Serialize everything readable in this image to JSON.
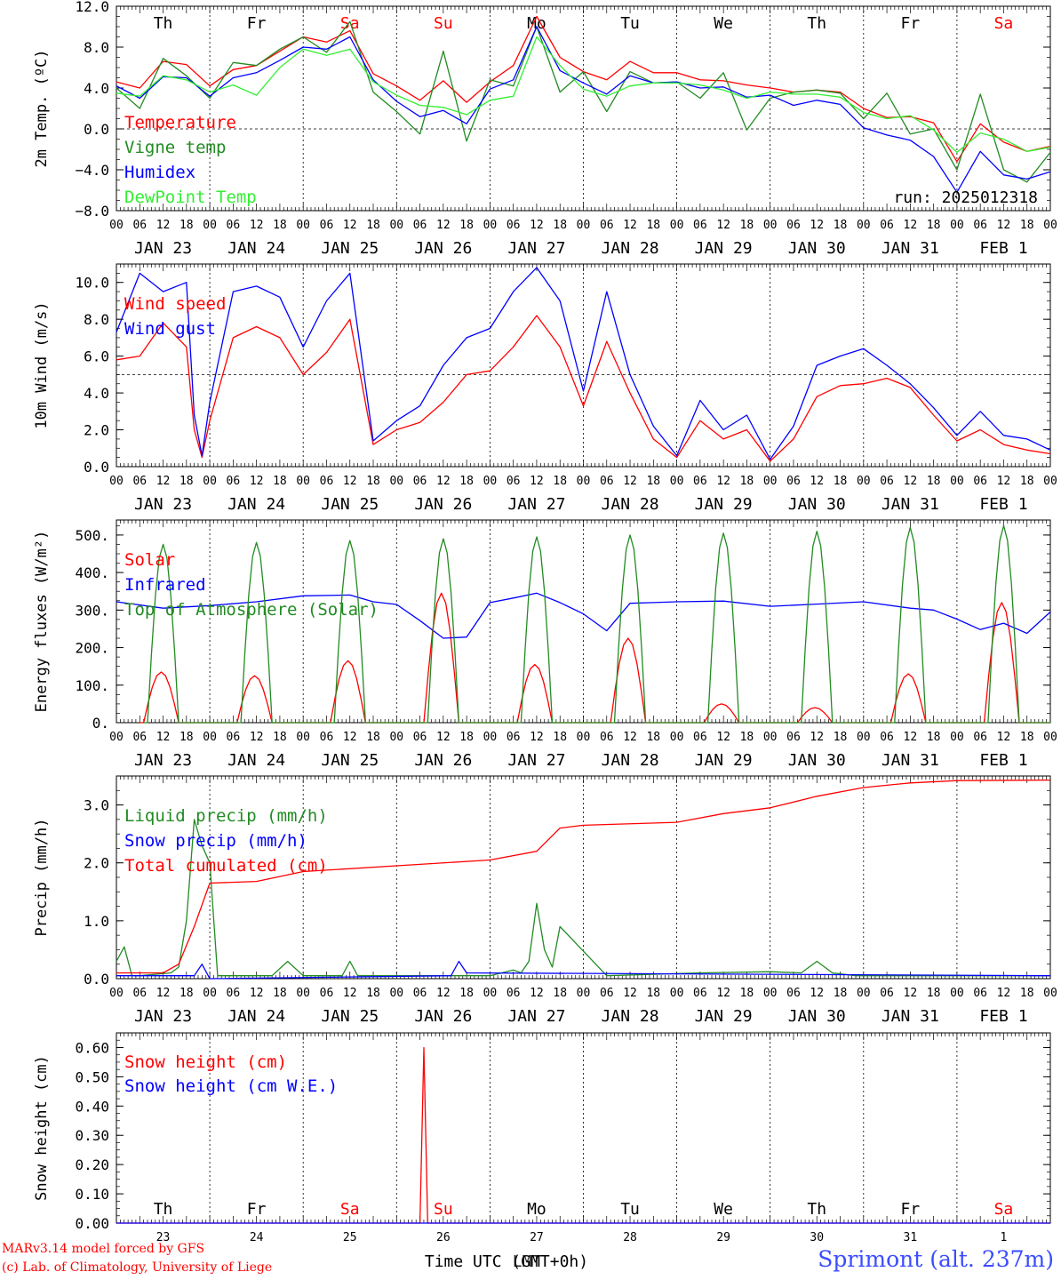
{
  "colors": {
    "red": "#ff0000",
    "green": "#228b22",
    "blue": "#0000ff",
    "lightgreen": "#33ee33",
    "black": "#000000"
  },
  "xaxis": {
    "tick_hours": [
      "00",
      "06",
      "12",
      "18"
    ],
    "date_labels": [
      "JAN 23",
      "JAN 24",
      "JAN 25",
      "JAN 26",
      "JAN 27",
      "JAN 28",
      "JAN 29",
      "JAN 30",
      "JAN 31",
      "FEB  1"
    ],
    "weekdays": [
      {
        "label": "Th",
        "weekend": false
      },
      {
        "label": "Fr",
        "weekend": false
      },
      {
        "label": "Sa",
        "weekend": true
      },
      {
        "label": "Su",
        "weekend": true
      },
      {
        "label": "Mo",
        "weekend": false
      },
      {
        "label": "Tu",
        "weekend": false
      },
      {
        "label": "We",
        "weekend": false
      },
      {
        "label": "Th",
        "weekend": false
      },
      {
        "label": "Fr",
        "weekend": false
      },
      {
        "label": "Sa",
        "weekend": true
      }
    ],
    "day_numbers": [
      "23",
      "24",
      "25",
      "26",
      "27",
      "28",
      "29",
      "30",
      "31",
      "1"
    ],
    "title": "Time UTC (GMT+0h)",
    "title_overprint": "LMT"
  },
  "footer": {
    "credit_line1": "MARv3.14 model forced by GFS",
    "credit_line2": "(c) Lab. of Climatology, University of Liege",
    "station": "Sprimont (alt. 237m)"
  },
  "chart_data": [
    {
      "type": "line",
      "ylabel": "2m Temp. (ºC)",
      "ylim": [
        -8,
        12
      ],
      "yticks": [
        "12.0",
        "8.0",
        "4.0",
        "0.0",
        "−4.0",
        "−8.0"
      ],
      "ytick_values": [
        12,
        8,
        4,
        0,
        -4,
        -8
      ],
      "reference_line": 0,
      "xlim_hours": [
        0,
        240
      ],
      "annotation": "run: 2025012318",
      "legend_placement": "top-left",
      "series": [
        {
          "name": "Temperature",
          "color": "red",
          "x": [
            0,
            6,
            12,
            18,
            24,
            30,
            36,
            42,
            48,
            54,
            60,
            66,
            72,
            78,
            84,
            90,
            96,
            102,
            108,
            114,
            120,
            126,
            132,
            138,
            144,
            150,
            156,
            162,
            168,
            174,
            180,
            186,
            192,
            198,
            204,
            210,
            216,
            222,
            228,
            234,
            240
          ],
          "y": [
            4.6,
            4.0,
            6.6,
            6.3,
            4.2,
            5.8,
            6.2,
            7.6,
            9.0,
            8.5,
            9.6,
            5.4,
            4.2,
            2.8,
            4.7,
            2.6,
            4.6,
            6.2,
            11.0,
            7.0,
            5.6,
            4.8,
            6.6,
            5.5,
            5.5,
            4.8,
            4.7,
            4.3,
            4.0,
            3.6,
            3.8,
            3.6,
            2.0,
            1.1,
            1.2,
            0.6,
            -3.2,
            0.5,
            -1.3,
            -2.2,
            -1.7
          ]
        },
        {
          "name": "Vigne temp",
          "color": "green",
          "x": [
            0,
            6,
            12,
            18,
            24,
            30,
            36,
            42,
            48,
            54,
            60,
            66,
            72,
            78,
            84,
            90,
            96,
            102,
            108,
            114,
            120,
            126,
            132,
            138,
            144,
            150,
            156,
            162,
            168,
            174,
            180,
            186,
            192,
            198,
            204,
            210,
            216,
            222,
            228,
            234,
            240
          ],
          "y": [
            4.0,
            2.0,
            6.9,
            5.2,
            3.0,
            6.5,
            6.2,
            7.8,
            9.0,
            7.5,
            10.5,
            3.6,
            1.7,
            -0.5,
            7.6,
            -1.2,
            4.8,
            4.2,
            10.0,
            3.6,
            5.6,
            1.7,
            5.6,
            4.5,
            4.6,
            3.0,
            5.5,
            -0.1,
            3.0,
            3.6,
            3.8,
            3.5,
            1.0,
            3.5,
            -0.5,
            0.0,
            -4.0,
            3.4,
            -4.0,
            -5.2,
            -2.3
          ]
        },
        {
          "name": "Humidex",
          "color": "blue",
          "x": [
            0,
            6,
            12,
            18,
            24,
            30,
            36,
            42,
            48,
            54,
            60,
            66,
            72,
            78,
            84,
            90,
            96,
            102,
            108,
            114,
            120,
            126,
            132,
            138,
            144,
            150,
            156,
            162,
            168,
            174,
            180,
            186,
            192,
            198,
            204,
            210,
            216,
            222,
            228,
            234,
            240
          ],
          "y": [
            4.2,
            3.0,
            5.1,
            5.0,
            3.2,
            5.0,
            5.5,
            6.7,
            8.0,
            7.8,
            9.0,
            4.8,
            2.7,
            1.2,
            1.8,
            0.5,
            3.9,
            4.8,
            10.0,
            5.7,
            4.5,
            3.4,
            5.2,
            4.5,
            4.6,
            4.0,
            4.1,
            3.1,
            3.3,
            2.3,
            2.8,
            2.4,
            0.1,
            -0.6,
            -1.1,
            -2.7,
            -6.2,
            -2.2,
            -4.5,
            -4.9,
            -4.2
          ]
        },
        {
          "name": "DewPoint Temp",
          "color": "lightgreen",
          "x": [
            0,
            6,
            12,
            18,
            24,
            30,
            36,
            42,
            48,
            54,
            60,
            66,
            72,
            78,
            84,
            90,
            96,
            102,
            108,
            114,
            120,
            126,
            132,
            138,
            144,
            150,
            156,
            162,
            168,
            174,
            180,
            186,
            192,
            198,
            204,
            210,
            216,
            222,
            228,
            234,
            240
          ],
          "y": [
            3.5,
            3.2,
            5.2,
            4.8,
            3.6,
            4.3,
            3.3,
            6.0,
            7.8,
            7.2,
            7.8,
            4.6,
            3.3,
            2.3,
            2.1,
            1.4,
            2.8,
            3.2,
            9.0,
            6.2,
            3.9,
            3.2,
            4.2,
            4.5,
            4.5,
            4.3,
            3.8,
            3.0,
            3.6,
            3.4,
            3.4,
            3.1,
            1.6,
            1.0,
            1.3,
            -0.1,
            -2.3,
            -0.4,
            -1.0,
            -2.2,
            -1.8
          ]
        }
      ]
    },
    {
      "type": "line",
      "ylabel": "10m Wind (m/s)",
      "ylim": [
        0,
        11
      ],
      "yticks": [
        "10.0",
        "8.0",
        "6.0",
        "4.0",
        "2.0",
        "0.0"
      ],
      "ytick_values": [
        10,
        8,
        6,
        4,
        2,
        0
      ],
      "reference_line": 5,
      "xlim_hours": [
        0,
        240
      ],
      "legend_placement": "top-left",
      "series": [
        {
          "name": "Wind speed",
          "color": "red",
          "x": [
            0,
            6,
            12,
            18,
            20,
            22,
            24,
            30,
            36,
            42,
            48,
            54,
            60,
            66,
            72,
            78,
            84,
            90,
            96,
            102,
            108,
            114,
            120,
            126,
            132,
            138,
            144,
            150,
            156,
            162,
            168,
            174,
            180,
            186,
            192,
            198,
            204,
            210,
            216,
            222,
            228,
            234,
            240
          ],
          "y": [
            5.8,
            6.0,
            7.8,
            6.5,
            2.0,
            0.5,
            2.5,
            7.0,
            7.6,
            7.0,
            5.0,
            6.2,
            8.0,
            1.2,
            2.0,
            2.4,
            3.5,
            5.0,
            5.2,
            6.5,
            8.2,
            6.5,
            3.3,
            6.8,
            4.0,
            1.5,
            0.5,
            2.5,
            1.5,
            2.0,
            0.3,
            1.5,
            3.8,
            4.4,
            4.5,
            4.8,
            4.3,
            2.8,
            1.4,
            2.0,
            1.2,
            0.9,
            0.7
          ]
        },
        {
          "name": "Wind gust",
          "color": "blue",
          "x": [
            0,
            6,
            12,
            18,
            20,
            22,
            24,
            30,
            36,
            42,
            48,
            54,
            60,
            66,
            72,
            78,
            84,
            90,
            96,
            102,
            108,
            114,
            120,
            126,
            132,
            138,
            144,
            150,
            156,
            162,
            168,
            174,
            180,
            186,
            192,
            198,
            204,
            210,
            216,
            222,
            228,
            234,
            240
          ],
          "y": [
            7.3,
            10.5,
            9.5,
            10.0,
            2.8,
            0.6,
            3.5,
            9.5,
            9.8,
            9.2,
            6.5,
            9.0,
            10.5,
            1.4,
            2.5,
            3.3,
            5.5,
            7.0,
            7.5,
            9.5,
            10.8,
            9.0,
            4.1,
            9.5,
            5.0,
            2.2,
            0.6,
            3.6,
            2.0,
            2.8,
            0.4,
            2.2,
            5.5,
            6.0,
            6.4,
            5.5,
            4.5,
            3.2,
            1.7,
            3.0,
            1.7,
            1.5,
            0.9
          ]
        }
      ]
    },
    {
      "type": "line",
      "ylabel": "Energy fluxes (W/m²)",
      "ylim": [
        0,
        540
      ],
      "yticks": [
        "500.",
        "400.",
        "300.",
        "200.",
        "100.",
        "0."
      ],
      "ytick_values": [
        500,
        400,
        300,
        200,
        100,
        0
      ],
      "xlim_hours": [
        0,
        240
      ],
      "legend_placement": "top-left",
      "series": [
        {
          "name": "Solar",
          "color": "red",
          "peak_hour": 10,
          "peaks": [
            135,
            125,
            165,
            345,
            155,
            225,
            50,
            40,
            130,
            320
          ],
          "rise_hour": 7,
          "set_hour": 16
        },
        {
          "name": "Infrared",
          "color": "blue",
          "x": [
            0,
            12,
            24,
            36,
            48,
            60,
            66,
            72,
            78,
            84,
            90,
            96,
            102,
            108,
            114,
            120,
            126,
            132,
            138,
            144,
            156,
            168,
            180,
            192,
            204,
            210,
            216,
            222,
            228,
            234,
            240
          ],
          "y": [
            322,
            305,
            312,
            322,
            338,
            340,
            322,
            315,
            272,
            225,
            228,
            320,
            332,
            345,
            320,
            290,
            245,
            318,
            320,
            322,
            324,
            310,
            316,
            322,
            305,
            300,
            276,
            248,
            265,
            238,
            295
          ]
        },
        {
          "name": "Top of Atmosphere (Solar)",
          "color": "green",
          "peaks": [
            475,
            480,
            485,
            490,
            495,
            500,
            505,
            510,
            520,
            525
          ],
          "rise_hour": 8,
          "set_hour": 16
        }
      ]
    },
    {
      "type": "line",
      "ylabel": "Precip (mm/h)",
      "ylim": [
        0,
        3.5
      ],
      "yticks": [
        "3.0",
        "2.0",
        "1.0",
        "0.0"
      ],
      "ytick_values": [
        3.0,
        2.0,
        1.0,
        0.0
      ],
      "xlim_hours": [
        0,
        240
      ],
      "legend_placement": "top-left",
      "series": [
        {
          "name": "Liquid precip (mm/h)",
          "color": "green",
          "x": [
            0,
            2,
            4,
            6,
            14,
            16,
            18,
            20,
            22,
            24,
            26,
            40,
            44,
            48,
            58,
            60,
            62,
            66,
            90,
            96,
            102,
            104,
            106,
            108,
            110,
            112,
            114,
            126,
            150,
            168,
            176,
            180,
            184,
            190,
            200,
            240
          ],
          "y": [
            0.3,
            0.55,
            0.05,
            0.05,
            0.1,
            0.2,
            1.0,
            2.75,
            2.3,
            2.0,
            0.05,
            0.05,
            0.3,
            0.05,
            0.05,
            0.3,
            0.05,
            0.05,
            0.05,
            0.05,
            0.15,
            0.1,
            0.3,
            1.3,
            0.5,
            0.2,
            0.9,
            0.05,
            0.1,
            0.12,
            0.1,
            0.3,
            0.1,
            0.05,
            0.05,
            0.05
          ]
        },
        {
          "name": "Snow precip (mm/h)",
          "color": "blue",
          "x": [
            0,
            20,
            22,
            24,
            86,
            88,
            90,
            240
          ],
          "y": [
            0.05,
            0.05,
            0.25,
            0.0,
            0.05,
            0.3,
            0.1,
            0.05
          ]
        },
        {
          "name": "Total cumulated (cm)",
          "color": "red",
          "x": [
            0,
            12,
            16,
            20,
            24,
            36,
            48,
            72,
            96,
            108,
            114,
            120,
            144,
            156,
            168,
            180,
            192,
            204,
            216,
            240
          ],
          "y": [
            0.1,
            0.1,
            0.25,
            0.9,
            1.65,
            1.68,
            1.85,
            1.95,
            2.05,
            2.2,
            2.6,
            2.65,
            2.7,
            2.85,
            2.95,
            3.15,
            3.3,
            3.38,
            3.42,
            3.43
          ]
        }
      ]
    },
    {
      "type": "line",
      "ylabel": "Snow height (cm)",
      "ylim": [
        0,
        0.65
      ],
      "yticks": [
        "0.60",
        "0.50",
        "0.40",
        "0.30",
        "0.20",
        "0.10",
        "0.00"
      ],
      "ytick_values": [
        0.6,
        0.5,
        0.4,
        0.3,
        0.2,
        0.1,
        0.0
      ],
      "xlim_hours": [
        0,
        240
      ],
      "legend_placement": "top-left",
      "series": [
        {
          "name": "Snow height (cm)",
          "color": "red",
          "x": [
            0,
            78,
            79,
            80,
            240
          ],
          "y": [
            0,
            0,
            0.6,
            0,
            0
          ]
        },
        {
          "name": "Snow height (cm W.E.)",
          "color": "blue",
          "x": [
            0,
            240
          ],
          "y": [
            0,
            0
          ]
        }
      ]
    }
  ]
}
